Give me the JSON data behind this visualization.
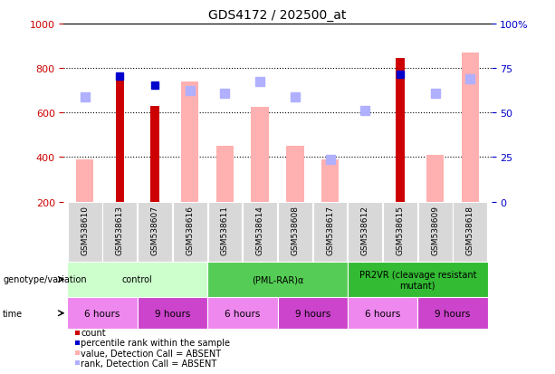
{
  "title": "GDS4172 / 202500_at",
  "samples": [
    "GSM538610",
    "GSM538613",
    "GSM538607",
    "GSM538616",
    "GSM538611",
    "GSM538614",
    "GSM538608",
    "GSM538617",
    "GSM538612",
    "GSM538615",
    "GSM538609",
    "GSM538618"
  ],
  "count_values": [
    null,
    760,
    630,
    null,
    null,
    null,
    null,
    null,
    null,
    845,
    null,
    null
  ],
  "count_color": "#cc0000",
  "value_absent": [
    390,
    null,
    null,
    740,
    450,
    625,
    450,
    390,
    null,
    null,
    410,
    870
  ],
  "value_absent_color": "#ffb0b0",
  "rank_absent": [
    670,
    null,
    null,
    700,
    685,
    740,
    670,
    390,
    610,
    null,
    685,
    750
  ],
  "rank_absent_color": "#b0b0ff",
  "percentile_rank": [
    null,
    762,
    725,
    null,
    null,
    null,
    null,
    null,
    null,
    770,
    null,
    null
  ],
  "percentile_rank_color": "#0000cc",
  "ylim_left": [
    200,
    1000
  ],
  "ylim_right": [
    0,
    100
  ],
  "yticks_left": [
    200,
    400,
    600,
    800,
    1000
  ],
  "yticks_right": [
    0,
    25,
    50,
    75,
    100
  ],
  "genotype_groups": [
    {
      "label": "control",
      "start": 0,
      "end": 4,
      "color": "#ccffcc"
    },
    {
      "label": "(PML-RAR)α",
      "start": 4,
      "end": 8,
      "color": "#55cc55"
    },
    {
      "label": "PR2VR (cleavage resistant\nmutant)",
      "start": 8,
      "end": 12,
      "color": "#33bb33"
    }
  ],
  "time_groups": [
    {
      "label": "6 hours",
      "start": 0,
      "end": 2,
      "color": "#ee88ee"
    },
    {
      "label": "9 hours",
      "start": 2,
      "end": 4,
      "color": "#cc44cc"
    },
    {
      "label": "6 hours",
      "start": 4,
      "end": 6,
      "color": "#ee88ee"
    },
    {
      "label": "9 hours",
      "start": 6,
      "end": 8,
      "color": "#cc44cc"
    },
    {
      "label": "6 hours",
      "start": 8,
      "end": 10,
      "color": "#ee88ee"
    },
    {
      "label": "9 hours",
      "start": 10,
      "end": 12,
      "color": "#cc44cc"
    }
  ],
  "legend": [
    {
      "label": "count",
      "color": "#cc0000"
    },
    {
      "label": "percentile rank within the sample",
      "color": "#0000cc"
    },
    {
      "label": "value, Detection Call = ABSENT",
      "color": "#ffb0b0"
    },
    {
      "label": "rank, Detection Call = ABSENT",
      "color": "#b0b0ff"
    }
  ],
  "bar_width": 0.5,
  "count_bar_width": 0.25,
  "marker_size": 7,
  "background_color": "#ffffff",
  "label_color_left": "#cc0000",
  "label_color_right": "#0000cc",
  "cell_bg": "#d8d8d8"
}
